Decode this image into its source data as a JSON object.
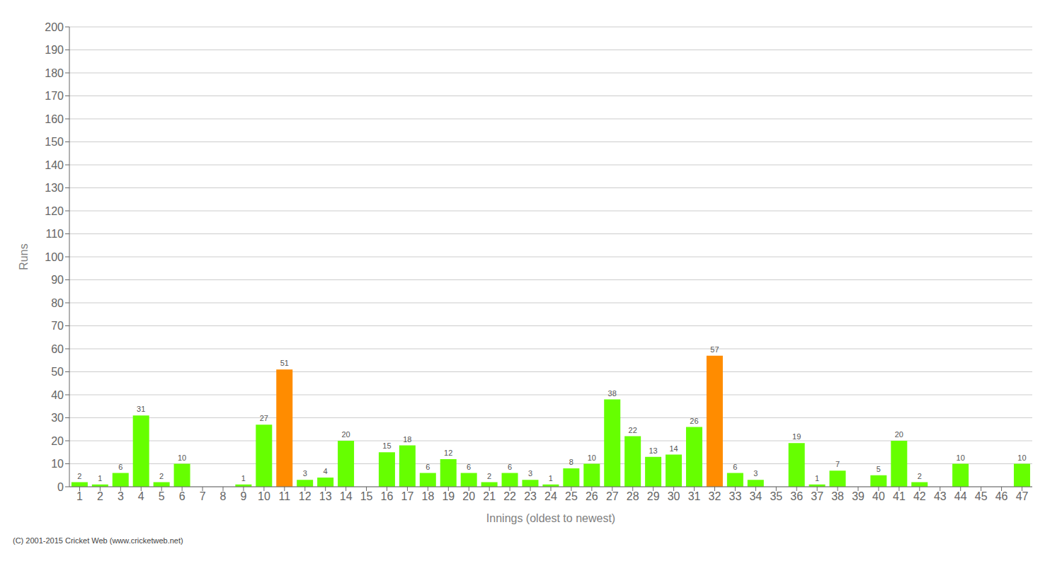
{
  "chart_data": {
    "type": "bar",
    "xlabel": "Innings (oldest to newest)",
    "ylabel": "Runs",
    "categories": [
      "1",
      "2",
      "3",
      "4",
      "5",
      "6",
      "7",
      "8",
      "9",
      "10",
      "11",
      "12",
      "13",
      "14",
      "15",
      "16",
      "17",
      "18",
      "19",
      "20",
      "21",
      "22",
      "23",
      "24",
      "25",
      "26",
      "27",
      "28",
      "29",
      "30",
      "31",
      "32",
      "33",
      "34",
      "35",
      "36",
      "37",
      "38",
      "39",
      "40",
      "41",
      "42",
      "43",
      "44",
      "45",
      "46",
      "47"
    ],
    "values": [
      2,
      1,
      6,
      31,
      2,
      10,
      0,
      0,
      1,
      27,
      51,
      3,
      4,
      20,
      0,
      15,
      18,
      6,
      12,
      6,
      2,
      6,
      3,
      1,
      8,
      10,
      38,
      22,
      13,
      14,
      26,
      57,
      6,
      3,
      0,
      19,
      1,
      7,
      0,
      5,
      20,
      2,
      0,
      10,
      0,
      0,
      10
    ],
    "colors": [
      "#66FF00",
      "#66FF00",
      "#66FF00",
      "#66FF00",
      "#66FF00",
      "#66FF00",
      "#66FF00",
      "#66FF00",
      "#66FF00",
      "#66FF00",
      "#FF8C00",
      "#66FF00",
      "#66FF00",
      "#66FF00",
      "#66FF00",
      "#66FF00",
      "#66FF00",
      "#66FF00",
      "#66FF00",
      "#66FF00",
      "#66FF00",
      "#66FF00",
      "#66FF00",
      "#66FF00",
      "#66FF00",
      "#66FF00",
      "#66FF00",
      "#66FF00",
      "#66FF00",
      "#66FF00",
      "#66FF00",
      "#FF8C00",
      "#66FF00",
      "#66FF00",
      "#66FF00",
      "#66FF00",
      "#66FF00",
      "#66FF00",
      "#66FF00",
      "#66FF00",
      "#66FF00",
      "#66FF00",
      "#66FF00",
      "#66FF00",
      "#66FF00",
      "#66FF00",
      "#66FF00"
    ],
    "ylim": [
      0,
      200
    ],
    "yticks": [
      0,
      10,
      20,
      30,
      40,
      50,
      60,
      70,
      80,
      90,
      100,
      110,
      120,
      130,
      140,
      150,
      160,
      170,
      180,
      190,
      200
    ],
    "grid": true,
    "data_labels": true,
    "annotations": [
      "(C) 2001-2015 Cricket Web (www.cricketweb.net)"
    ]
  }
}
